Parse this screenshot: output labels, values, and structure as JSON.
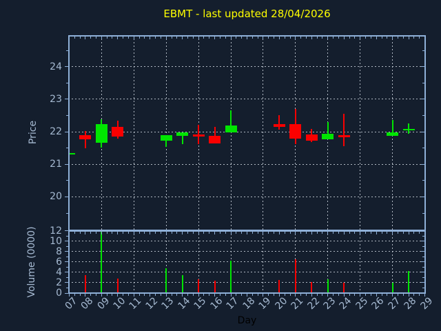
{
  "title": "EBMT - last updated 28/04/2026",
  "axis_labels": {
    "x": "Day",
    "price": "Price",
    "volume": "Volume (0000)"
  },
  "colors": {
    "background": "#141e2d",
    "title": "#ffff00",
    "frame": "#8fb0d8",
    "tick": "#8fb0d8",
    "grid": "rgba(205,213,222,0.85)",
    "tick_label": "#a6bad2",
    "xlabel_text": "#000000",
    "up": "#00e600",
    "down": "#fa0000"
  },
  "chart_data": {
    "type": "candlestick",
    "subplots": [
      "price",
      "volume"
    ],
    "grid": true,
    "x_axis": {
      "tick_labels": [
        "07",
        "08",
        "09",
        "10",
        "11",
        "12",
        "13",
        "14",
        "15",
        "16",
        "17",
        "18",
        "19",
        "20",
        "21",
        "22",
        "23",
        "24",
        "25",
        "26",
        "27",
        "28",
        "29"
      ],
      "first_day": 7,
      "range": [
        6.94,
        29.06
      ],
      "gridline_days": [
        9,
        11,
        13,
        15,
        17,
        19,
        21,
        23,
        25,
        27,
        29
      ]
    },
    "price_axis": {
      "ticks": [
        20,
        21,
        22,
        23,
        24
      ],
      "range": [
        18.97,
        24.97
      ]
    },
    "volume_axis": {
      "ticks": [
        0,
        2,
        4,
        6,
        8,
        10,
        12
      ],
      "range": [
        0,
        12.13
      ],
      "unit": "0000"
    },
    "up_color": "#00e600",
    "down_color": "#fa0000",
    "candles": [
      {
        "day": 7,
        "open": 21.3,
        "high": 21.36,
        "low": 21.27,
        "close": 21.35,
        "volume": 0
      },
      {
        "day": 8,
        "open": 21.89,
        "high": 22.03,
        "low": 21.5,
        "close": 21.77,
        "volume": 3.5
      },
      {
        "day": 9,
        "open": 21.67,
        "high": 22.39,
        "low": 21.52,
        "close": 22.23,
        "volume": 11.8
      },
      {
        "day": 10,
        "open": 22.15,
        "high": 22.35,
        "low": 21.8,
        "close": 21.86,
        "volume": 2.8
      },
      {
        "day": 13,
        "open": 21.73,
        "high": 21.89,
        "low": 21.54,
        "close": 21.89,
        "volume": 4.8
      },
      {
        "day": 14,
        "open": 21.87,
        "high": 21.98,
        "low": 21.63,
        "close": 21.98,
        "volume": 3.5
      },
      {
        "day": 15,
        "open": 21.92,
        "high": 22.21,
        "low": 21.62,
        "close": 21.86,
        "volume": 2.7
      },
      {
        "day": 16,
        "open": 21.87,
        "high": 22.15,
        "low": 21.64,
        "close": 21.64,
        "volume": 2.4
      },
      {
        "day": 17,
        "open": 21.98,
        "high": 22.65,
        "low": 21.98,
        "close": 22.2,
        "volume": 6.3
      },
      {
        "day": 20,
        "open": 22.23,
        "high": 22.51,
        "low": 22.07,
        "close": 22.16,
        "volume": 2.5
      },
      {
        "day": 21,
        "open": 22.23,
        "high": 22.71,
        "low": 21.63,
        "close": 21.79,
        "volume": 6.5
      },
      {
        "day": 22,
        "open": 21.92,
        "high": 22.09,
        "low": 21.68,
        "close": 21.72,
        "volume": 2.1
      },
      {
        "day": 23,
        "open": 21.76,
        "high": 22.3,
        "low": 21.76,
        "close": 21.93,
        "volume": 2.7
      },
      {
        "day": 24,
        "open": 21.89,
        "high": 22.56,
        "low": 21.55,
        "close": 21.84,
        "volume": 2.0
      },
      {
        "day": 27,
        "open": 21.87,
        "high": 22.37,
        "low": 21.87,
        "close": 21.98,
        "volume": 2.0
      },
      {
        "day": 28,
        "open": 22.04,
        "high": 22.25,
        "low": 21.94,
        "close": 22.09,
        "volume": 4.2
      }
    ]
  }
}
